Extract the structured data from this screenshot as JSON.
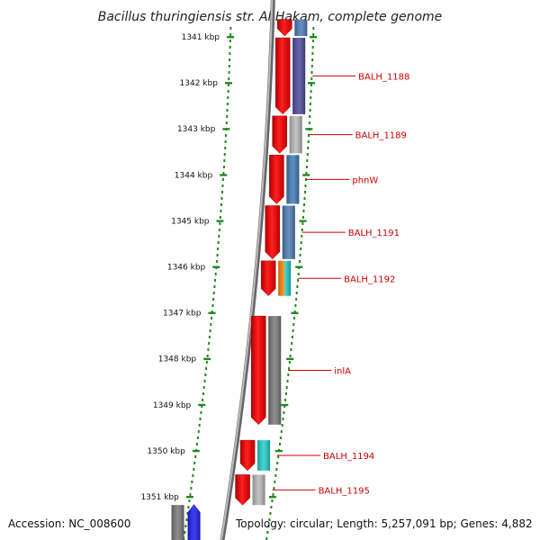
{
  "title": "Bacillus thuringiensis str. Al Hakam, complete genome",
  "footer": {
    "accession": "Accession: NC_008600",
    "topology": "Topology: circular; Length: 5,257,091 bp; Genes: 4,882"
  },
  "ticks": [
    {
      "kbp": 1341,
      "label": "1341 kbp"
    },
    {
      "kbp": 1342,
      "label": "1342 kbp"
    },
    {
      "kbp": 1343,
      "label": "1343 kbp"
    },
    {
      "kbp": 1344,
      "label": "1344 kbp"
    },
    {
      "kbp": 1345,
      "label": "1345 kbp"
    },
    {
      "kbp": 1346,
      "label": "1346 kbp"
    },
    {
      "kbp": 1347,
      "label": "1347 kbp"
    },
    {
      "kbp": 1348,
      "label": "1348 kbp"
    },
    {
      "kbp": 1349,
      "label": "1349 kbp"
    },
    {
      "kbp": 1350,
      "label": "1350 kbp"
    },
    {
      "kbp": 1351,
      "label": "1351 kbp"
    }
  ],
  "genes": [
    {
      "label": "",
      "start_kbp": 1340.6,
      "end_kbp": 1341.0,
      "color": "#4a78b8"
    },
    {
      "label": "BALH_1188",
      "start_kbp": 1341.0,
      "end_kbp": 1342.7,
      "color": "#4a4a9a"
    },
    {
      "label": "BALH_1189",
      "start_kbp": 1342.7,
      "end_kbp": 1343.55,
      "color": "#b8b8b8"
    },
    {
      "label": "phnW",
      "start_kbp": 1343.55,
      "end_kbp": 1344.65,
      "color": "#3f7ab5"
    },
    {
      "label": "BALH_1191",
      "start_kbp": 1344.65,
      "end_kbp": 1345.85,
      "color": "#4b7bb3"
    },
    {
      "label": "BALH_1192",
      "start_kbp": 1345.85,
      "end_kbp": 1346.65,
      "color": "#ff8800",
      "color2": "#22cccc"
    },
    {
      "label": "inlA",
      "start_kbp": 1347.05,
      "end_kbp": 1349.45,
      "color": "#777777"
    },
    {
      "label": "BALH_1194",
      "start_kbp": 1349.75,
      "end_kbp": 1350.45,
      "color": "#22cccc"
    },
    {
      "label": "BALH_1195",
      "start_kbp": 1350.5,
      "end_kbp": 1351.2,
      "color": "#b8b8b8"
    },
    {
      "label": "",
      "start_kbp": 1351.1,
      "end_kbp": 1351.9,
      "color": "#777777"
    },
    {
      "label": "",
      "start_kbp": 1351.1,
      "end_kbp": 1351.9,
      "color": "#1a1aee"
    }
  ],
  "colors": {
    "cds_arrow": "#ee0000",
    "axis_dots": "#228822",
    "backbone": "#888888",
    "gene_label": "#cc0000"
  }
}
